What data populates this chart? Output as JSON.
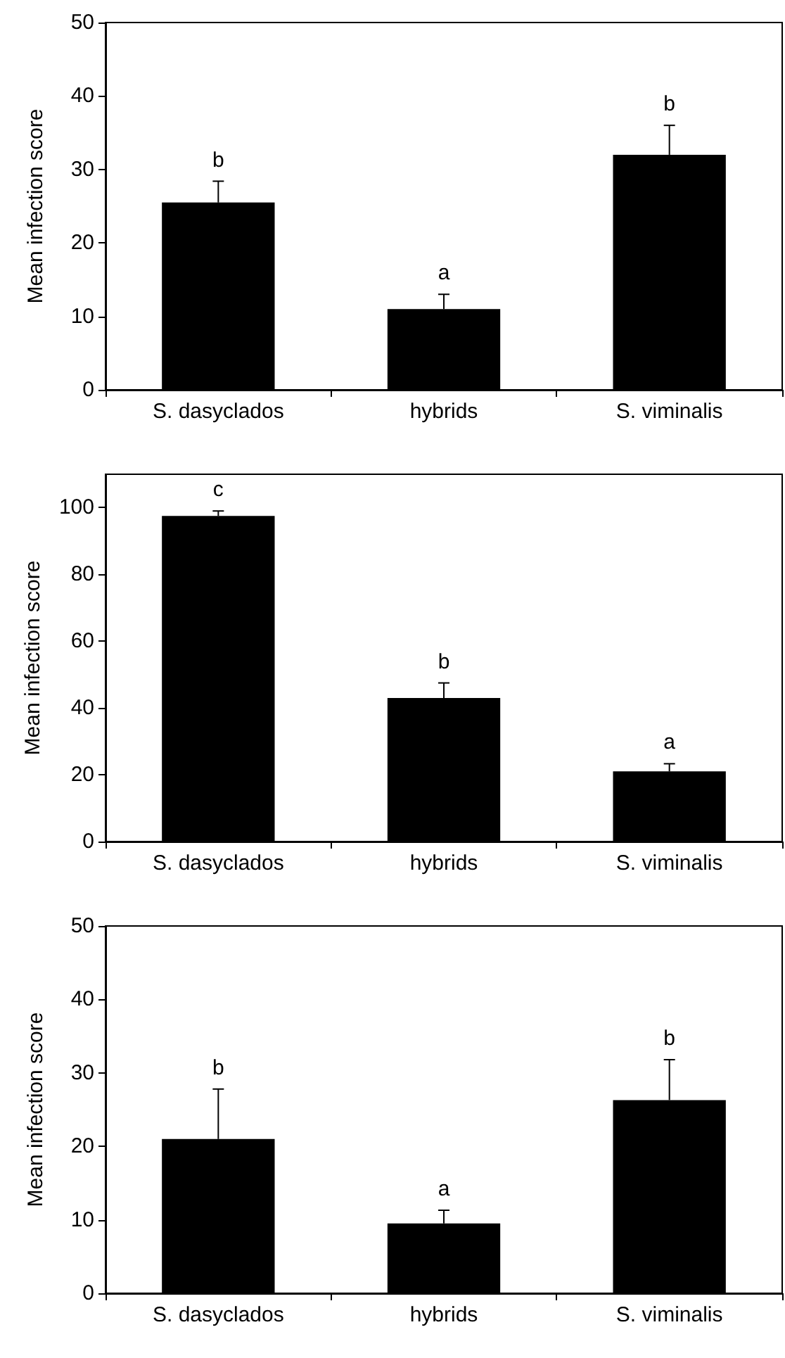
{
  "chart_data": [
    {
      "type": "bar",
      "ylabel": "Mean infection score",
      "categories": [
        "S. dasyclados",
        "hybrids",
        "S. viminalis"
      ],
      "values": [
        25.5,
        11,
        32
      ],
      "color": "#000000",
      "errors": [
        [
          25.5,
          28.4
        ],
        [
          11,
          13
        ],
        [
          32,
          36
        ]
      ],
      "ylim": [
        0,
        50
      ],
      "yticks": [
        0,
        10,
        20,
        30,
        40,
        50
      ],
      "grid": false,
      "annotations": [
        "b",
        "a",
        "b"
      ]
    },
    {
      "type": "bar",
      "ylabel": "Mean infection score",
      "categories": [
        "S. dasyclados",
        "hybrids",
        "S. viminalis"
      ],
      "values": [
        97.5,
        43,
        21
      ],
      "color": "#000000",
      "errors": [
        [
          97.5,
          99
        ],
        [
          43,
          47.5
        ],
        [
          21,
          23.3
        ]
      ],
      "ylim": [
        0,
        110
      ],
      "yticks": [
        0,
        20,
        40,
        60,
        80,
        100
      ],
      "grid": false,
      "annotations": [
        "c",
        "b",
        "a"
      ]
    },
    {
      "type": "bar",
      "ylabel": "Mean infection score",
      "categories": [
        "S. dasyclados",
        "hybrids",
        "S. viminalis"
      ],
      "values": [
        21,
        9.5,
        26.3
      ],
      "color": "#000000",
      "errors": [
        [
          21,
          27.8
        ],
        [
          9.5,
          11.3
        ],
        [
          26.3,
          31.8
        ]
      ],
      "ylim": [
        0,
        50
      ],
      "yticks": [
        0,
        10,
        20,
        30,
        40,
        50
      ],
      "grid": false,
      "annotations": [
        "b",
        "a",
        "b"
      ]
    }
  ]
}
